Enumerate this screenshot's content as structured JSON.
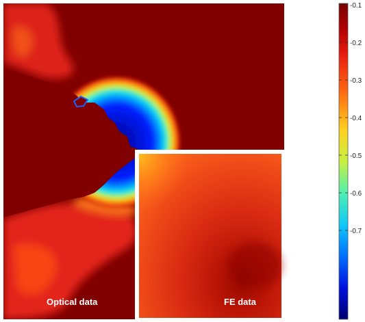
{
  "chart_data": {
    "type": "heatmap",
    "panels": [
      {
        "label": "Optical data"
      },
      {
        "label": "FE data"
      }
    ],
    "colorbar": {
      "ticks": [
        -0.1,
        -0.2,
        -0.3,
        -0.4,
        -0.5,
        -0.6,
        -0.7
      ],
      "tick_labels": [
        "-0.1",
        "-0.2",
        "-0.3",
        "-0.4",
        "-0.5",
        "-0.6",
        "-0.7"
      ],
      "range": [
        -0.75,
        -0.1
      ],
      "colormap": "jet",
      "placement": "right"
    }
  },
  "colors": {
    "dark_red": "#800000",
    "red": "#e8281e",
    "orange": "#ff8a1e",
    "yellow": "#f8f030",
    "cyan": "#30d8f0",
    "blue": "#1040ff",
    "dark_blue": "#000080",
    "inset_border": "#ffffff"
  }
}
